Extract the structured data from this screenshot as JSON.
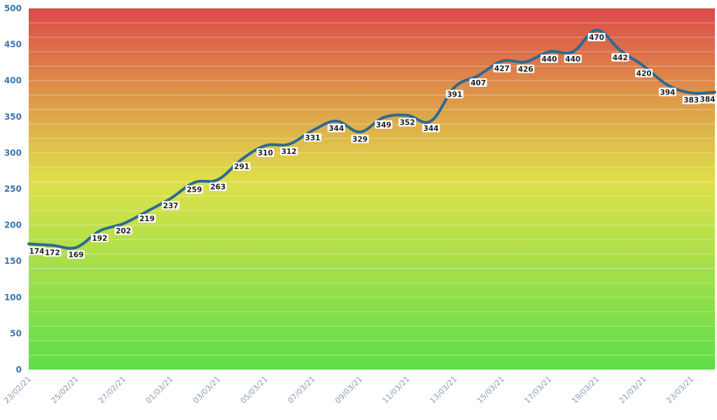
{
  "chart_data": {
    "type": "line",
    "dates": [
      "23/02/21",
      "24/02/21",
      "25/02/21",
      "26/02/21",
      "27/02/21",
      "28/02/21",
      "01/03/21",
      "02/03/21",
      "03/03/21",
      "04/03/21",
      "05/03/21",
      "06/03/21",
      "07/03/21",
      "08/03/21",
      "09/03/21",
      "10/03/21",
      "11/03/21",
      "12/03/21",
      "13/03/21",
      "14/03/21",
      "15/03/21",
      "16/03/21",
      "17/03/21",
      "18/03/21",
      "19/03/21",
      "20/03/21",
      "21/03/21",
      "22/03/21",
      "23/03/21",
      "24/03/21"
    ],
    "x_tick_labels": [
      "23/02/21",
      "25/02/21",
      "27/02/21",
      "01/03/21",
      "03/03/21",
      "05/03/21",
      "07/03/21",
      "09/03/21",
      "11/03/21",
      "13/03/21",
      "15/03/21",
      "17/03/21",
      "19/03/21",
      "21/03/21",
      "23/03/21"
    ],
    "series": [
      {
        "values": [
          174,
          172,
          169,
          192,
          202,
          219,
          237,
          259,
          263,
          291,
          310,
          312,
          331,
          344,
          329,
          349,
          352,
          344,
          391,
          407,
          427,
          426,
          440,
          440,
          470,
          442,
          420,
          394,
          383,
          384
        ]
      }
    ],
    "data_labels": [
      "174",
      "172",
      "169",
      "192",
      "202",
      "219",
      "237",
      "259",
      "263",
      "291",
      "310",
      "312",
      "331",
      "344",
      "329",
      "349",
      "352",
      "344",
      "391",
      "407",
      "427",
      "426",
      "440",
      "440",
      "470",
      "442",
      "420",
      "394",
      "383",
      "384"
    ],
    "y_ticks": [
      "0",
      "50",
      "100",
      "150",
      "200",
      "250",
      "300",
      "350",
      "400",
      "450",
      "500"
    ],
    "ylim": [
      0,
      500
    ],
    "background_gradient": {
      "top": "#dc4a4a",
      "middle": "#dfe04a",
      "bottom": "#5ede4a"
    },
    "line_color": "#2c6a94",
    "grid": true
  }
}
